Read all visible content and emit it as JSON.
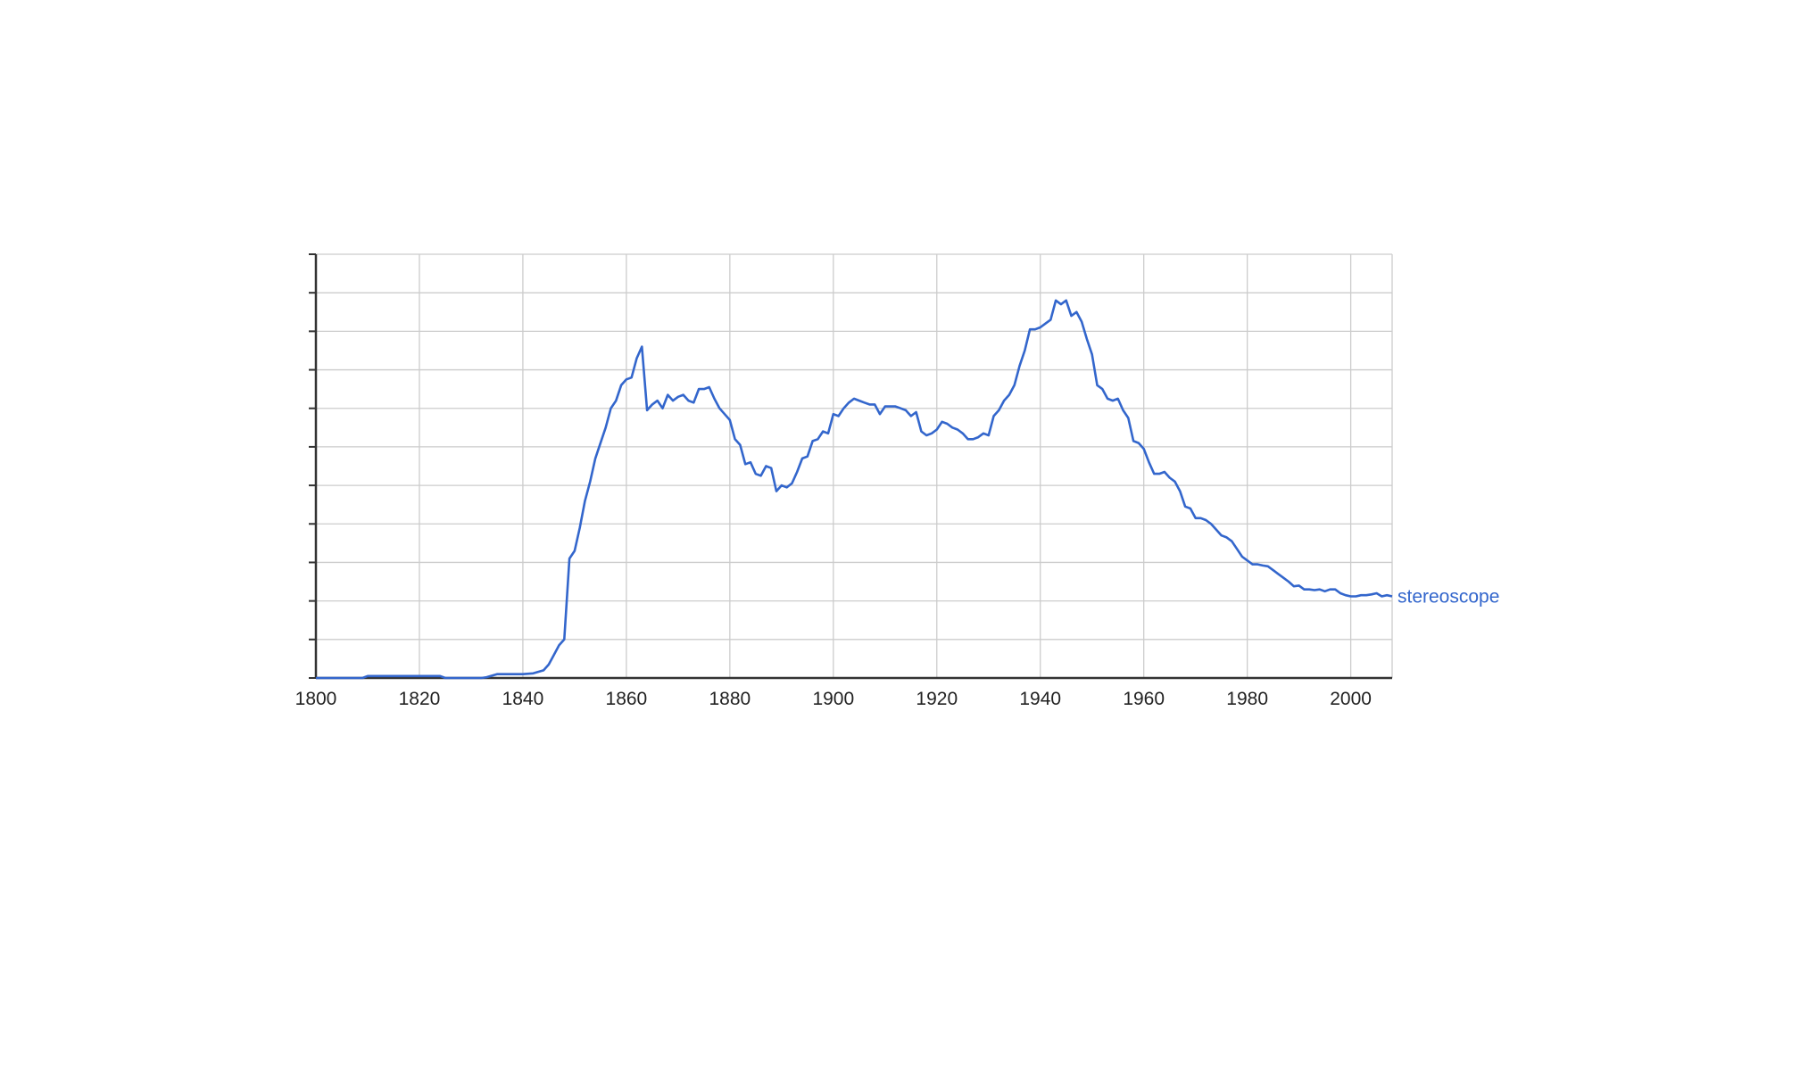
{
  "chart_data": {
    "type": "line",
    "title": "",
    "xlabel": "",
    "ylabel": "",
    "xlim": [
      1800,
      2008
    ],
    "ylim": [
      0,
      11
    ],
    "x_ticks": [
      1800,
      1820,
      1840,
      1860,
      1880,
      1900,
      1920,
      1940,
      1960,
      1980,
      2000
    ],
    "y_tick_count": 12,
    "grid": true,
    "legend": "none",
    "series": [
      {
        "name": "stereoscope",
        "color": "#3366cc",
        "points": [
          [
            1800,
            0.0
          ],
          [
            1808,
            0.0
          ],
          [
            1809,
            0.0
          ],
          [
            1810,
            0.05
          ],
          [
            1812,
            0.05
          ],
          [
            1815,
            0.05
          ],
          [
            1818,
            0.05
          ],
          [
            1820,
            0.05
          ],
          [
            1822,
            0.05
          ],
          [
            1824,
            0.05
          ],
          [
            1825,
            0.0
          ],
          [
            1830,
            0.0
          ],
          [
            1832,
            0.0
          ],
          [
            1833,
            0.02
          ],
          [
            1835,
            0.1
          ],
          [
            1837,
            0.1
          ],
          [
            1840,
            0.1
          ],
          [
            1842,
            0.12
          ],
          [
            1844,
            0.2
          ],
          [
            1845,
            0.35
          ],
          [
            1846,
            0.6
          ],
          [
            1847,
            0.85
          ],
          [
            1848,
            1.0
          ],
          [
            1849,
            3.1
          ],
          [
            1850,
            3.3
          ],
          [
            1851,
            3.9
          ],
          [
            1852,
            4.6
          ],
          [
            1853,
            5.1
          ],
          [
            1854,
            5.7
          ],
          [
            1855,
            6.1
          ],
          [
            1856,
            6.5
          ],
          [
            1857,
            7.0
          ],
          [
            1858,
            7.2
          ],
          [
            1859,
            7.6
          ],
          [
            1860,
            7.75
          ],
          [
            1861,
            7.8
          ],
          [
            1862,
            8.3
          ],
          [
            1863,
            8.6
          ],
          [
            1864,
            6.95
          ],
          [
            1865,
            7.1
          ],
          [
            1866,
            7.2
          ],
          [
            1867,
            7.0
          ],
          [
            1868,
            7.35
          ],
          [
            1869,
            7.2
          ],
          [
            1870,
            7.3
          ],
          [
            1871,
            7.35
          ],
          [
            1872,
            7.2
          ],
          [
            1873,
            7.15
          ],
          [
            1874,
            7.5
          ],
          [
            1875,
            7.5
          ],
          [
            1876,
            7.55
          ],
          [
            1877,
            7.25
          ],
          [
            1878,
            7.0
          ],
          [
            1879,
            6.85
          ],
          [
            1880,
            6.7
          ],
          [
            1881,
            6.2
          ],
          [
            1882,
            6.05
          ],
          [
            1883,
            5.55
          ],
          [
            1884,
            5.6
          ],
          [
            1885,
            5.3
          ],
          [
            1886,
            5.25
          ],
          [
            1887,
            5.5
          ],
          [
            1888,
            5.45
          ],
          [
            1889,
            4.85
          ],
          [
            1890,
            5.0
          ],
          [
            1891,
            4.95
          ],
          [
            1892,
            5.05
          ],
          [
            1893,
            5.35
          ],
          [
            1894,
            5.7
          ],
          [
            1895,
            5.75
          ],
          [
            1896,
            6.15
          ],
          [
            1897,
            6.2
          ],
          [
            1898,
            6.4
          ],
          [
            1899,
            6.35
          ],
          [
            1900,
            6.85
          ],
          [
            1901,
            6.8
          ],
          [
            1902,
            7.0
          ],
          [
            1903,
            7.15
          ],
          [
            1904,
            7.25
          ],
          [
            1905,
            7.2
          ],
          [
            1906,
            7.15
          ],
          [
            1907,
            7.1
          ],
          [
            1908,
            7.1
          ],
          [
            1909,
            6.85
          ],
          [
            1910,
            7.05
          ],
          [
            1911,
            7.05
          ],
          [
            1912,
            7.05
          ],
          [
            1913,
            7.0
          ],
          [
            1914,
            6.95
          ],
          [
            1915,
            6.8
          ],
          [
            1916,
            6.9
          ],
          [
            1917,
            6.4
          ],
          [
            1918,
            6.3
          ],
          [
            1919,
            6.35
          ],
          [
            1920,
            6.45
          ],
          [
            1921,
            6.65
          ],
          [
            1922,
            6.6
          ],
          [
            1923,
            6.5
          ],
          [
            1924,
            6.45
          ],
          [
            1925,
            6.35
          ],
          [
            1926,
            6.2
          ],
          [
            1927,
            6.2
          ],
          [
            1928,
            6.25
          ],
          [
            1929,
            6.35
          ],
          [
            1930,
            6.3
          ],
          [
            1931,
            6.8
          ],
          [
            1932,
            6.95
          ],
          [
            1933,
            7.2
          ],
          [
            1934,
            7.35
          ],
          [
            1935,
            7.6
          ],
          [
            1936,
            8.1
          ],
          [
            1937,
            8.5
          ],
          [
            1938,
            9.05
          ],
          [
            1939,
            9.05
          ],
          [
            1940,
            9.1
          ],
          [
            1941,
            9.2
          ],
          [
            1942,
            9.3
          ],
          [
            1943,
            9.8
          ],
          [
            1944,
            9.7
          ],
          [
            1945,
            9.8
          ],
          [
            1946,
            9.4
          ],
          [
            1947,
            9.5
          ],
          [
            1948,
            9.25
          ],
          [
            1949,
            8.8
          ],
          [
            1950,
            8.4
          ],
          [
            1951,
            7.6
          ],
          [
            1952,
            7.5
          ],
          [
            1953,
            7.25
          ],
          [
            1954,
            7.2
          ],
          [
            1955,
            7.25
          ],
          [
            1956,
            6.95
          ],
          [
            1957,
            6.75
          ],
          [
            1958,
            6.15
          ],
          [
            1959,
            6.1
          ],
          [
            1960,
            5.95
          ],
          [
            1961,
            5.6
          ],
          [
            1962,
            5.3
          ],
          [
            1963,
            5.3
          ],
          [
            1964,
            5.35
          ],
          [
            1965,
            5.2
          ],
          [
            1966,
            5.1
          ],
          [
            1967,
            4.85
          ],
          [
            1968,
            4.45
          ],
          [
            1969,
            4.4
          ],
          [
            1970,
            4.15
          ],
          [
            1971,
            4.15
          ],
          [
            1972,
            4.1
          ],
          [
            1973,
            4.0
          ],
          [
            1974,
            3.85
          ],
          [
            1975,
            3.7
          ],
          [
            1976,
            3.65
          ],
          [
            1977,
            3.55
          ],
          [
            1978,
            3.35
          ],
          [
            1979,
            3.15
          ],
          [
            1980,
            3.05
          ],
          [
            1981,
            2.95
          ],
          [
            1982,
            2.95
          ],
          [
            1983,
            2.92
          ],
          [
            1984,
            2.9
          ],
          [
            1985,
            2.8
          ],
          [
            1986,
            2.7
          ],
          [
            1987,
            2.6
          ],
          [
            1988,
            2.5
          ],
          [
            1989,
            2.38
          ],
          [
            1990,
            2.4
          ],
          [
            1991,
            2.3
          ],
          [
            1992,
            2.3
          ],
          [
            1993,
            2.28
          ],
          [
            1994,
            2.3
          ],
          [
            1995,
            2.25
          ],
          [
            1996,
            2.3
          ],
          [
            1997,
            2.3
          ],
          [
            1998,
            2.2
          ],
          [
            1999,
            2.15
          ],
          [
            2000,
            2.12
          ],
          [
            2001,
            2.12
          ],
          [
            2002,
            2.15
          ],
          [
            2003,
            2.15
          ],
          [
            2004,
            2.17
          ],
          [
            2005,
            2.2
          ],
          [
            2006,
            2.12
          ],
          [
            2007,
            2.15
          ],
          [
            2008,
            2.12
          ]
        ]
      }
    ]
  }
}
